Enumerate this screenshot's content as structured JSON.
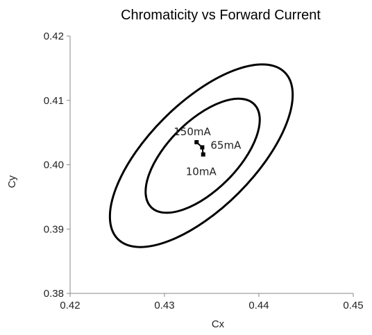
{
  "chart_data": {
    "type": "scatter",
    "title": "Chromaticity vs Forward Current",
    "xlabel": "Cx",
    "ylabel": "Cy",
    "xlim": [
      0.42,
      0.45
    ],
    "ylim": [
      0.38,
      0.42
    ],
    "x_ticks": [
      "0.42",
      "0.43",
      "0.44",
      "0.45"
    ],
    "y_ticks": [
      "0.38",
      "0.39",
      "0.40",
      "0.41",
      "0.42"
    ],
    "grid": false,
    "legend": "none",
    "series": [
      {
        "points": [
          {
            "x": 0.4334,
            "y": 0.4035,
            "label": "150mA"
          },
          {
            "x": 0.434,
            "y": 0.4027,
            "label": "65mA"
          },
          {
            "x": 0.4341,
            "y": 0.4016,
            "label": "10mA"
          }
        ]
      }
    ],
    "ellipses": [
      {
        "cx": 0.4339,
        "cy": 0.4014,
        "rx_deg": null,
        "kind": "outer"
      },
      {
        "cx": 0.4339,
        "cy": 0.4014,
        "kind": "inner"
      }
    ],
    "colors": {
      "line": "#000000",
      "axis": "#888888"
    }
  }
}
